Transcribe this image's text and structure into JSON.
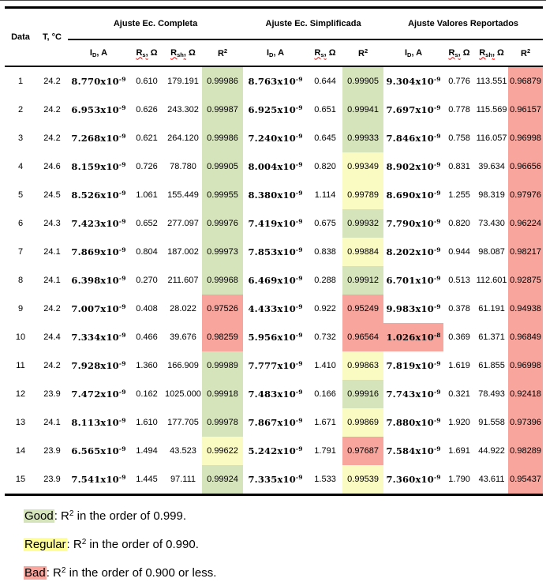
{
  "colors": {
    "good": "#d6e4bc",
    "regular": "#fafac3",
    "bad": "#f8a59e",
    "legend_good": "#d6e4bc",
    "legend_regular": "#ffff96",
    "legend_bad": "#f8a59e",
    "squiggle": "#ff0000"
  },
  "table": {
    "corner": {
      "data": "Data",
      "temp": "T, °C"
    },
    "groups": [
      {
        "label": "Ajuste Ec. Completa",
        "span": 4
      },
      {
        "label": "Ajuste Ec. Simplificada",
        "span": 3
      },
      {
        "label": "Ajuste Valores Reportados",
        "span": 4
      }
    ],
    "sub_headers": [
      {
        "base": "I",
        "sub": "D",
        "suffix": ", A",
        "wavy": false
      },
      {
        "base": "R",
        "sub": "s",
        "suffix": ", Ω",
        "wavy": true
      },
      {
        "base": "R",
        "sub": "sh",
        "suffix": ", Ω",
        "wavy": true
      },
      {
        "base": "R",
        "sup": "2",
        "suffix": "",
        "wavy": false
      },
      {
        "base": "I",
        "sub": "D",
        "suffix": ", A",
        "wavy": false
      },
      {
        "base": "R",
        "sub": "s",
        "suffix": ", Ω",
        "wavy": true
      },
      {
        "base": "R",
        "sup": "2",
        "suffix": "",
        "wavy": false
      },
      {
        "base": "I",
        "sub": "D",
        "suffix": ", A",
        "wavy": false
      },
      {
        "base": "R",
        "sub": "s",
        "suffix": ", Ω",
        "wavy": true
      },
      {
        "base": "R",
        "sub": "sh",
        "suffix": ", Ω",
        "wavy": true
      },
      {
        "base": "R",
        "sup": "2",
        "suffix": "",
        "wavy": false
      }
    ],
    "rows": [
      {
        "data": "1",
        "t": "24.2",
        "cells": [
          {
            "v": "8.770",
            "exp": "-9"
          },
          {
            "v": "0.610"
          },
          {
            "v": "179.191"
          },
          {
            "v": "0.99986",
            "hl": "good"
          },
          {
            "v": "8.763",
            "exp": "-9"
          },
          {
            "v": "0.644"
          },
          {
            "v": "0.99905",
            "hl": "good"
          },
          {
            "v": "9.304",
            "exp": "-9"
          },
          {
            "v": "0.776"
          },
          {
            "v": "113.551"
          },
          {
            "v": "0.96879",
            "hl": "bad"
          }
        ]
      },
      {
        "data": "2",
        "t": "24.2",
        "cells": [
          {
            "v": "6.953",
            "exp": "-9"
          },
          {
            "v": "0.626"
          },
          {
            "v": "243.302"
          },
          {
            "v": "0.99987",
            "hl": "good"
          },
          {
            "v": "6.925",
            "exp": "-9"
          },
          {
            "v": "0.651"
          },
          {
            "v": "0.99941",
            "hl": "good"
          },
          {
            "v": "7.697",
            "exp": "-9"
          },
          {
            "v": "0.778"
          },
          {
            "v": "115.569"
          },
          {
            "v": "0.96157",
            "hl": "bad"
          }
        ]
      },
      {
        "data": "3",
        "t": "24.2",
        "cells": [
          {
            "v": "7.268",
            "exp": "-9"
          },
          {
            "v": "0.621"
          },
          {
            "v": "264.120"
          },
          {
            "v": "0.99986",
            "hl": "good"
          },
          {
            "v": "7.240",
            "exp": "-9"
          },
          {
            "v": "0.645"
          },
          {
            "v": "0.99933",
            "hl": "good"
          },
          {
            "v": "7.846",
            "exp": "-9"
          },
          {
            "v": "0.758"
          },
          {
            "v": "116.057"
          },
          {
            "v": "0.96998",
            "hl": "bad"
          }
        ]
      },
      {
        "data": "4",
        "t": "24.6",
        "cells": [
          {
            "v": "8.159",
            "exp": "-9"
          },
          {
            "v": "0.726"
          },
          {
            "v": "78.780"
          },
          {
            "v": "0.99905",
            "hl": "good"
          },
          {
            "v": "8.004",
            "exp": "-9"
          },
          {
            "v": "0.820"
          },
          {
            "v": "0.99349",
            "hl": "regular"
          },
          {
            "v": "8.902",
            "exp": "-9"
          },
          {
            "v": "0.831"
          },
          {
            "v": "39.634"
          },
          {
            "v": "0.96656",
            "hl": "bad"
          }
        ]
      },
      {
        "data": "5",
        "t": "24.5",
        "cells": [
          {
            "v": "8.526",
            "exp": "-9"
          },
          {
            "v": "1.061"
          },
          {
            "v": "155.449"
          },
          {
            "v": "0.99955",
            "hl": "good"
          },
          {
            "v": "8.380",
            "exp": "-9"
          },
          {
            "v": "1.114"
          },
          {
            "v": "0.99789",
            "hl": "regular"
          },
          {
            "v": "8.690",
            "exp": "-9"
          },
          {
            "v": "1.255"
          },
          {
            "v": "98.319"
          },
          {
            "v": "0.97976",
            "hl": "bad"
          }
        ]
      },
      {
        "data": "6",
        "t": "24.3",
        "cells": [
          {
            "v": "7.423",
            "exp": "-9"
          },
          {
            "v": "0.652"
          },
          {
            "v": "277.097"
          },
          {
            "v": "0.99976",
            "hl": "good"
          },
          {
            "v": "7.419",
            "exp": "-9"
          },
          {
            "v": "0.675"
          },
          {
            "v": "0.99932",
            "hl": "good"
          },
          {
            "v": "7.790",
            "exp": "-9"
          },
          {
            "v": "0.820"
          },
          {
            "v": "73.430"
          },
          {
            "v": "0.96224",
            "hl": "bad"
          }
        ]
      },
      {
        "data": "7",
        "t": "24.1",
        "cells": [
          {
            "v": "7.869",
            "exp": "-9"
          },
          {
            "v": "0.804"
          },
          {
            "v": "187.002"
          },
          {
            "v": "0.99973",
            "hl": "good"
          },
          {
            "v": "7.853",
            "exp": "-9"
          },
          {
            "v": "0.838"
          },
          {
            "v": "0.99884",
            "hl": "regular"
          },
          {
            "v": "8.202",
            "exp": "-9"
          },
          {
            "v": "0.944"
          },
          {
            "v": "98.087"
          },
          {
            "v": "0.98217",
            "hl": "bad"
          }
        ]
      },
      {
        "data": "8",
        "t": "24.1",
        "cells": [
          {
            "v": "6.398",
            "exp": "-9"
          },
          {
            "v": "0.270"
          },
          {
            "v": "211.607"
          },
          {
            "v": "0.99968",
            "hl": "good"
          },
          {
            "v": "6.469",
            "exp": "-9"
          },
          {
            "v": "0.288"
          },
          {
            "v": "0.99912",
            "hl": "good"
          },
          {
            "v": "6.701",
            "exp": "-9"
          },
          {
            "v": "0.513"
          },
          {
            "v": "112.601"
          },
          {
            "v": "0.92875",
            "hl": "bad"
          }
        ]
      },
      {
        "data": "9",
        "t": "24.2",
        "cells": [
          {
            "v": "7.007",
            "exp": "-9"
          },
          {
            "v": "0.408"
          },
          {
            "v": "28.022"
          },
          {
            "v": "0.97526",
            "hl": "bad"
          },
          {
            "v": "4.433",
            "exp": "-9"
          },
          {
            "v": "0.922"
          },
          {
            "v": "0.95249",
            "hl": "bad"
          },
          {
            "v": "9.983",
            "exp": "-9"
          },
          {
            "v": "0.378"
          },
          {
            "v": "61.191"
          },
          {
            "v": "0.94938",
            "hl": "bad"
          }
        ]
      },
      {
        "data": "10",
        "t": "24.4",
        "cells": [
          {
            "v": "7.334",
            "exp": "-9"
          },
          {
            "v": "0.466"
          },
          {
            "v": "39.676"
          },
          {
            "v": "0.98259",
            "hl": "bad"
          },
          {
            "v": "5.956",
            "exp": "-9"
          },
          {
            "v": "0.732"
          },
          {
            "v": "0.96564",
            "hl": "bad"
          },
          {
            "v": "1.026",
            "exp": "-8",
            "hl": "bad"
          },
          {
            "v": "0.369"
          },
          {
            "v": "61.371"
          },
          {
            "v": "0.96849",
            "hl": "bad"
          }
        ]
      },
      {
        "data": "11",
        "t": "24.2",
        "cells": [
          {
            "v": "7.928",
            "exp": "-9"
          },
          {
            "v": "1.360"
          },
          {
            "v": "166.909"
          },
          {
            "v": "0.99989",
            "hl": "good"
          },
          {
            "v": "7.777",
            "exp": "-9"
          },
          {
            "v": "1.410"
          },
          {
            "v": "0.99863",
            "hl": "regular"
          },
          {
            "v": "7.819",
            "exp": "-9"
          },
          {
            "v": "1.619"
          },
          {
            "v": "61.855"
          },
          {
            "v": "0.96998",
            "hl": "bad"
          }
        ]
      },
      {
        "data": "12",
        "t": "23.9",
        "cells": [
          {
            "v": "7.472",
            "exp": "-9"
          },
          {
            "v": "0.162"
          },
          {
            "v": "1025.000"
          },
          {
            "v": "0.99918",
            "hl": "good"
          },
          {
            "v": "7.483",
            "exp": "-9"
          },
          {
            "v": "0.166"
          },
          {
            "v": "0.99916",
            "hl": "good"
          },
          {
            "v": "7.743",
            "exp": "-9"
          },
          {
            "v": "0.321"
          },
          {
            "v": "78.493"
          },
          {
            "v": "0.92418",
            "hl": "bad"
          }
        ]
      },
      {
        "data": "13",
        "t": "24.1",
        "cells": [
          {
            "v": "8.113",
            "exp": "-9"
          },
          {
            "v": "1.610"
          },
          {
            "v": "177.705"
          },
          {
            "v": "0.99978",
            "hl": "good"
          },
          {
            "v": "7.867",
            "exp": "-9"
          },
          {
            "v": "1.671"
          },
          {
            "v": "0.99869",
            "hl": "regular"
          },
          {
            "v": "7.880",
            "exp": "-9"
          },
          {
            "v": "1.920"
          },
          {
            "v": "91.558"
          },
          {
            "v": "0.97396",
            "hl": "bad"
          }
        ]
      },
      {
        "data": "14",
        "t": "23.9",
        "cells": [
          {
            "v": "6.565",
            "exp": "-9"
          },
          {
            "v": "1.494"
          },
          {
            "v": "43.523"
          },
          {
            "v": "0.99622",
            "hl": "regular"
          },
          {
            "v": "5.242",
            "exp": "-9"
          },
          {
            "v": "1.791"
          },
          {
            "v": "0.97687",
            "hl": "bad"
          },
          {
            "v": "7.584",
            "exp": "-9"
          },
          {
            "v": "1.691"
          },
          {
            "v": "44.922"
          },
          {
            "v": "0.98289",
            "hl": "bad"
          }
        ]
      },
      {
        "data": "15",
        "t": "23.9",
        "cells": [
          {
            "v": "7.541",
            "exp": "-9"
          },
          {
            "v": "1.445"
          },
          {
            "v": "97.111"
          },
          {
            "v": "0.99924",
            "hl": "good"
          },
          {
            "v": "7.335",
            "exp": "-9"
          },
          {
            "v": "1.533"
          },
          {
            "v": "0.99539",
            "hl": "regular"
          },
          {
            "v": "7.360",
            "exp": "-9"
          },
          {
            "v": "1.790"
          },
          {
            "v": "43.611"
          },
          {
            "v": "0.95437",
            "hl": "bad"
          }
        ]
      }
    ]
  },
  "legend": [
    {
      "term": "Good",
      "key": "legend_good",
      "pre": ": R",
      "sup": "2",
      "post": " in the order of 0.999."
    },
    {
      "term": "Regular",
      "key": "legend_regular",
      "pre": ": R",
      "sup": "2",
      "post": " in the order of 0.990."
    },
    {
      "term": "Bad",
      "key": "legend_bad",
      "pre": ": R",
      "sup": "2",
      "post": " in the order of 0.900 or less."
    }
  ]
}
